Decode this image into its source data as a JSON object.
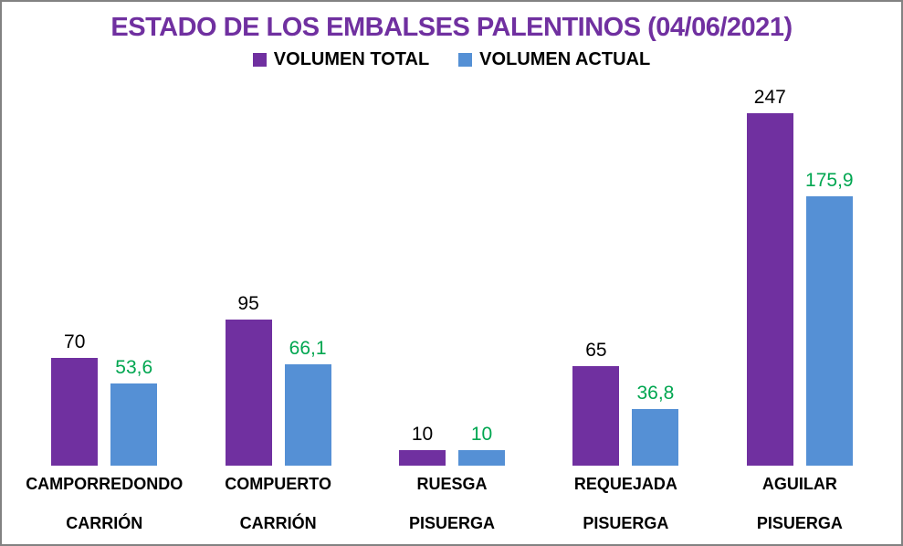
{
  "chart_data": {
    "type": "bar",
    "title": "ESTADO DE LOS EMBALSES PALENTINOS (04/06/2021)",
    "title_color": "#7030A0",
    "categories": [
      "CAMPORREDONDO",
      "COMPUERTO",
      "RUESGA",
      "REQUEJADA",
      "AGUILAR"
    ],
    "category_sublabels": [
      "CARRIÓN",
      "CARRIÓN",
      "PISUERGA",
      "PISUERGA",
      "PISUERGA"
    ],
    "series": [
      {
        "name": "VOLUMEN TOTAL",
        "color": "#7030A0",
        "label_color": "#000000",
        "values": [
          70,
          95,
          10,
          65,
          247
        ],
        "labels": [
          "70",
          "95",
          "10",
          "65",
          "247"
        ]
      },
      {
        "name": "VOLUMEN ACTUAL",
        "color": "#5590D5",
        "label_color": "#00A650",
        "values": [
          53.6,
          66.1,
          10,
          36.8,
          175.9
        ],
        "labels": [
          "53,6",
          "66,1",
          "10",
          "36,8",
          "175,9"
        ]
      }
    ],
    "ylim": [
      0,
      247
    ],
    "xlabel": "",
    "ylabel": "",
    "grid": false,
    "axes_visible": false,
    "legend_position": "top",
    "value_labels_shown": true
  }
}
